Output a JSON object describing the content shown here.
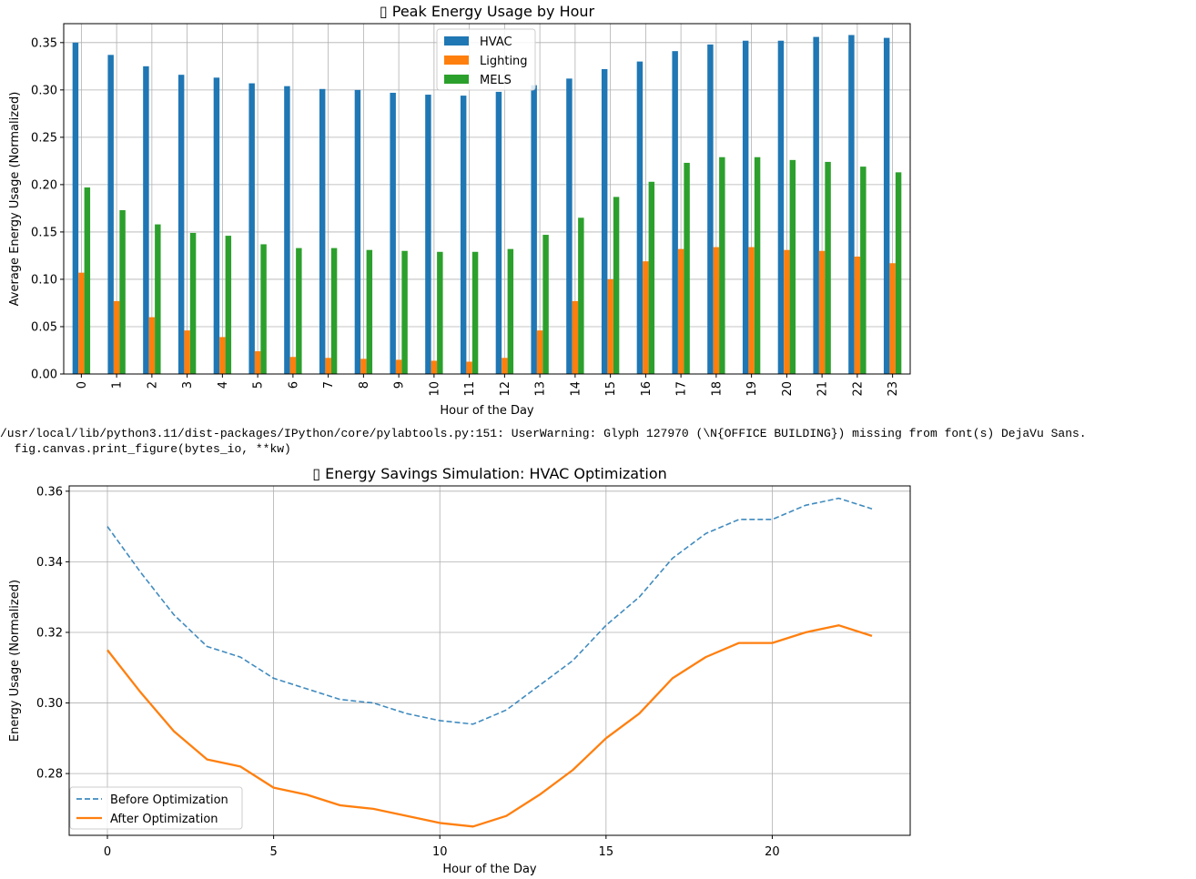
{
  "warning": {
    "line1": "/usr/local/lib/python3.11/dist-packages/IPython/core/pylabtools.py:151: UserWarning: Glyph 127970 (\\N{OFFICE BUILDING}) missing from font(s) DejaVu Sans.",
    "line2": "  fig.canvas.print_figure(bytes_io, **kw)"
  },
  "chart_data": [
    {
      "type": "bar",
      "title": "▯ Peak Energy Usage by Hour",
      "xlabel": "Hour of the Day",
      "ylabel": "Average Energy Usage (Normalized)",
      "categories": [
        "0",
        "1",
        "2",
        "3",
        "4",
        "5",
        "6",
        "7",
        "8",
        "9",
        "10",
        "11",
        "12",
        "13",
        "14",
        "15",
        "16",
        "17",
        "18",
        "19",
        "20",
        "21",
        "22",
        "23"
      ],
      "ylim": [
        0,
        0.37
      ],
      "yticks": [
        0.0,
        0.05,
        0.1,
        0.15,
        0.2,
        0.25,
        0.3,
        0.35
      ],
      "ytick_labels": [
        "0.00",
        "0.05",
        "0.10",
        "0.15",
        "0.20",
        "0.25",
        "0.30",
        "0.35"
      ],
      "grid": true,
      "legend": "upper-center",
      "series": [
        {
          "name": "HVAC",
          "color": "#1f77b4",
          "values": [
            0.35,
            0.337,
            0.325,
            0.316,
            0.313,
            0.307,
            0.304,
            0.301,
            0.3,
            0.297,
            0.295,
            0.294,
            0.298,
            0.305,
            0.312,
            0.322,
            0.33,
            0.341,
            0.348,
            0.352,
            0.352,
            0.356,
            0.358,
            0.355
          ]
        },
        {
          "name": "Lighting",
          "color": "#ff7f0e",
          "values": [
            0.107,
            0.077,
            0.06,
            0.046,
            0.039,
            0.024,
            0.018,
            0.017,
            0.016,
            0.015,
            0.014,
            0.013,
            0.017,
            0.046,
            0.077,
            0.1,
            0.119,
            0.132,
            0.134,
            0.134,
            0.131,
            0.13,
            0.124,
            0.117
          ]
        },
        {
          "name": "MELS",
          "color": "#2ca02c",
          "values": [
            0.197,
            0.173,
            0.158,
            0.149,
            0.146,
            0.137,
            0.133,
            0.133,
            0.131,
            0.13,
            0.129,
            0.129,
            0.132,
            0.147,
            0.165,
            0.187,
            0.203,
            0.223,
            0.229,
            0.229,
            0.226,
            0.224,
            0.219,
            0.213
          ]
        }
      ]
    },
    {
      "type": "line",
      "title": "▯ Energy Savings Simulation: HVAC Optimization",
      "xlabel": "Hour of the Day",
      "ylabel": "Energy Usage (Normalized)",
      "x": [
        0,
        1,
        2,
        3,
        4,
        5,
        6,
        7,
        8,
        9,
        10,
        11,
        12,
        13,
        14,
        15,
        16,
        17,
        18,
        19,
        20,
        21,
        22,
        23
      ],
      "xlim": [
        -1.15,
        24.15
      ],
      "ylim": [
        0.2625,
        0.3615
      ],
      "xticks": [
        0,
        5,
        10,
        15,
        20
      ],
      "xtick_labels": [
        "0",
        "5",
        "10",
        "15",
        "20"
      ],
      "yticks": [
        0.28,
        0.3,
        0.32,
        0.34,
        0.36
      ],
      "ytick_labels": [
        "0.28",
        "0.30",
        "0.32",
        "0.34",
        "0.36"
      ],
      "grid": true,
      "legend": "lower-left",
      "series": [
        {
          "name": "Before Optimization",
          "color": "#1f77b4",
          "style": "dashed",
          "values": [
            0.35,
            0.337,
            0.325,
            0.316,
            0.313,
            0.307,
            0.304,
            0.301,
            0.3,
            0.297,
            0.295,
            0.294,
            0.298,
            0.305,
            0.312,
            0.322,
            0.33,
            0.341,
            0.348,
            0.352,
            0.352,
            0.356,
            0.358,
            0.355
          ]
        },
        {
          "name": "After Optimization",
          "color": "#ff7f0e",
          "style": "solid",
          "values": [
            0.315,
            0.303,
            0.292,
            0.284,
            0.282,
            0.276,
            0.274,
            0.271,
            0.27,
            0.268,
            0.266,
            0.265,
            0.268,
            0.274,
            0.281,
            0.29,
            0.297,
            0.307,
            0.313,
            0.317,
            0.317,
            0.32,
            0.322,
            0.319
          ]
        }
      ]
    }
  ]
}
